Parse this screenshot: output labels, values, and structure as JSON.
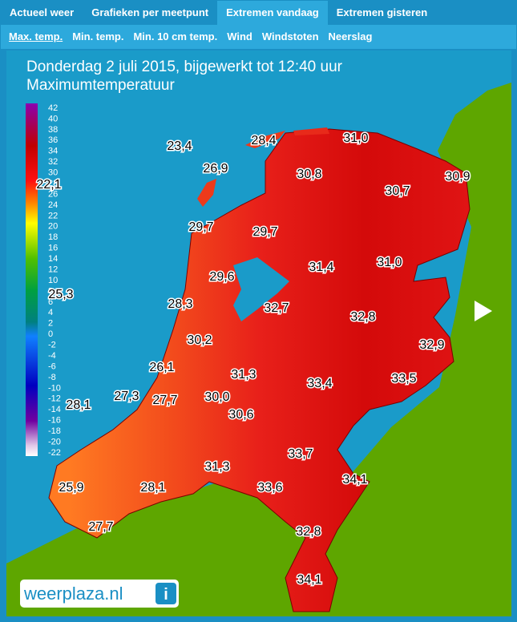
{
  "tabs": [
    "Actueel weer",
    "Grafieken per meetpunt",
    "Extremen vandaag",
    "Extremen gisteren"
  ],
  "subtabs": [
    "Max. temp.",
    "Min. temp.",
    "Min. 10 cm temp.",
    "Wind",
    "Windstoten",
    "Neerslag"
  ],
  "header": {
    "title": "Donderdag 2 juli 2015, bijgewerkt tot 12:40 uur",
    "subtitle": "Maximumtemperatuur"
  },
  "legend": {
    "ticks": [
      42,
      40,
      38,
      36,
      34,
      32,
      30,
      28,
      26,
      24,
      22,
      20,
      18,
      16,
      14,
      12,
      10,
      8,
      6,
      4,
      2,
      0,
      -2,
      -4,
      -6,
      -8,
      -10,
      -12,
      -14,
      -16,
      -18,
      -20,
      -22
    ]
  },
  "stations": [
    "23,4",
    "28,4",
    "31,0",
    "26,9",
    "30,8",
    "30,9",
    "22,1",
    "30,7",
    "29,7",
    "29,7",
    "31,4",
    "31,0",
    "29,6",
    "25,3",
    "28,3",
    "32,7",
    "32,8",
    "30,2",
    "32,9",
    "26,1",
    "31,3",
    "33,4",
    "33,5",
    "28,1",
    "27,3",
    "27,7",
    "30,0",
    "30,6",
    "33,7",
    "31,3",
    "34,1",
    "28,1",
    "25,9",
    "33,6",
    "27,7",
    "32,8",
    "34,1"
  ],
  "logo": "weerplaza.nl"
}
